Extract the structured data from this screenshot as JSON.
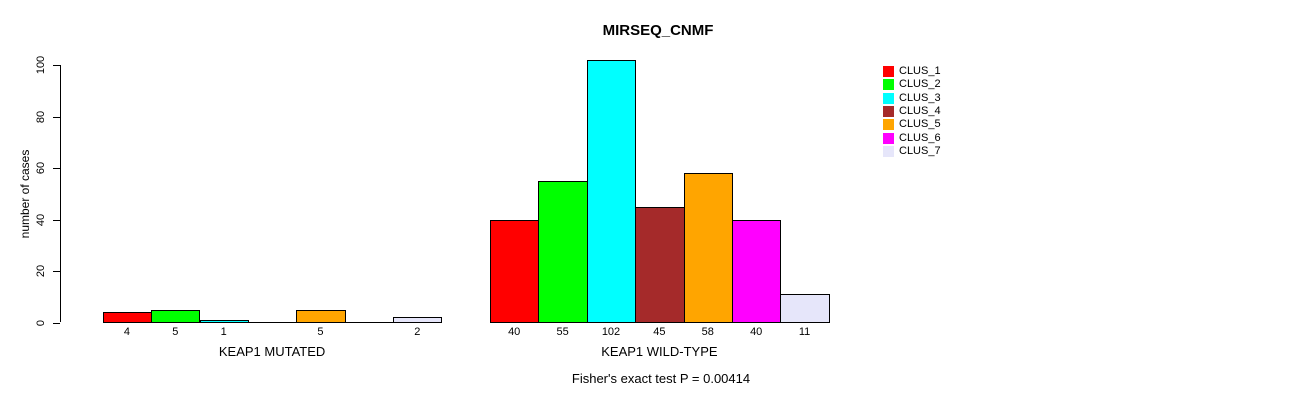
{
  "chart_data": {
    "type": "bar",
    "title": "MIRSEQ_CNMF",
    "ylabel": "number of cases",
    "ylim": [
      0,
      100
    ],
    "yticks": [
      0,
      20,
      40,
      60,
      80,
      100
    ],
    "grid": false,
    "legend_position": "right",
    "series_labels": [
      "CLUS_1",
      "CLUS_2",
      "CLUS_3",
      "CLUS_4",
      "CLUS_5",
      "CLUS_6",
      "CLUS_7"
    ],
    "series_colors": [
      "#FF0000",
      "#00FF00",
      "#00FFFF",
      "#A52A2A",
      "#FFA500",
      "#FF00FF",
      "#E6E6FA"
    ],
    "groups": [
      {
        "label": "KEAP1 MUTATED",
        "values": [
          4,
          5,
          1,
          0,
          5,
          0,
          2
        ]
      },
      {
        "label": "KEAP1 WILD-TYPE",
        "values": [
          40,
          55,
          102,
          45,
          58,
          40,
          11
        ]
      }
    ],
    "footnote": "Fisher's exact test P = 0.00414"
  }
}
